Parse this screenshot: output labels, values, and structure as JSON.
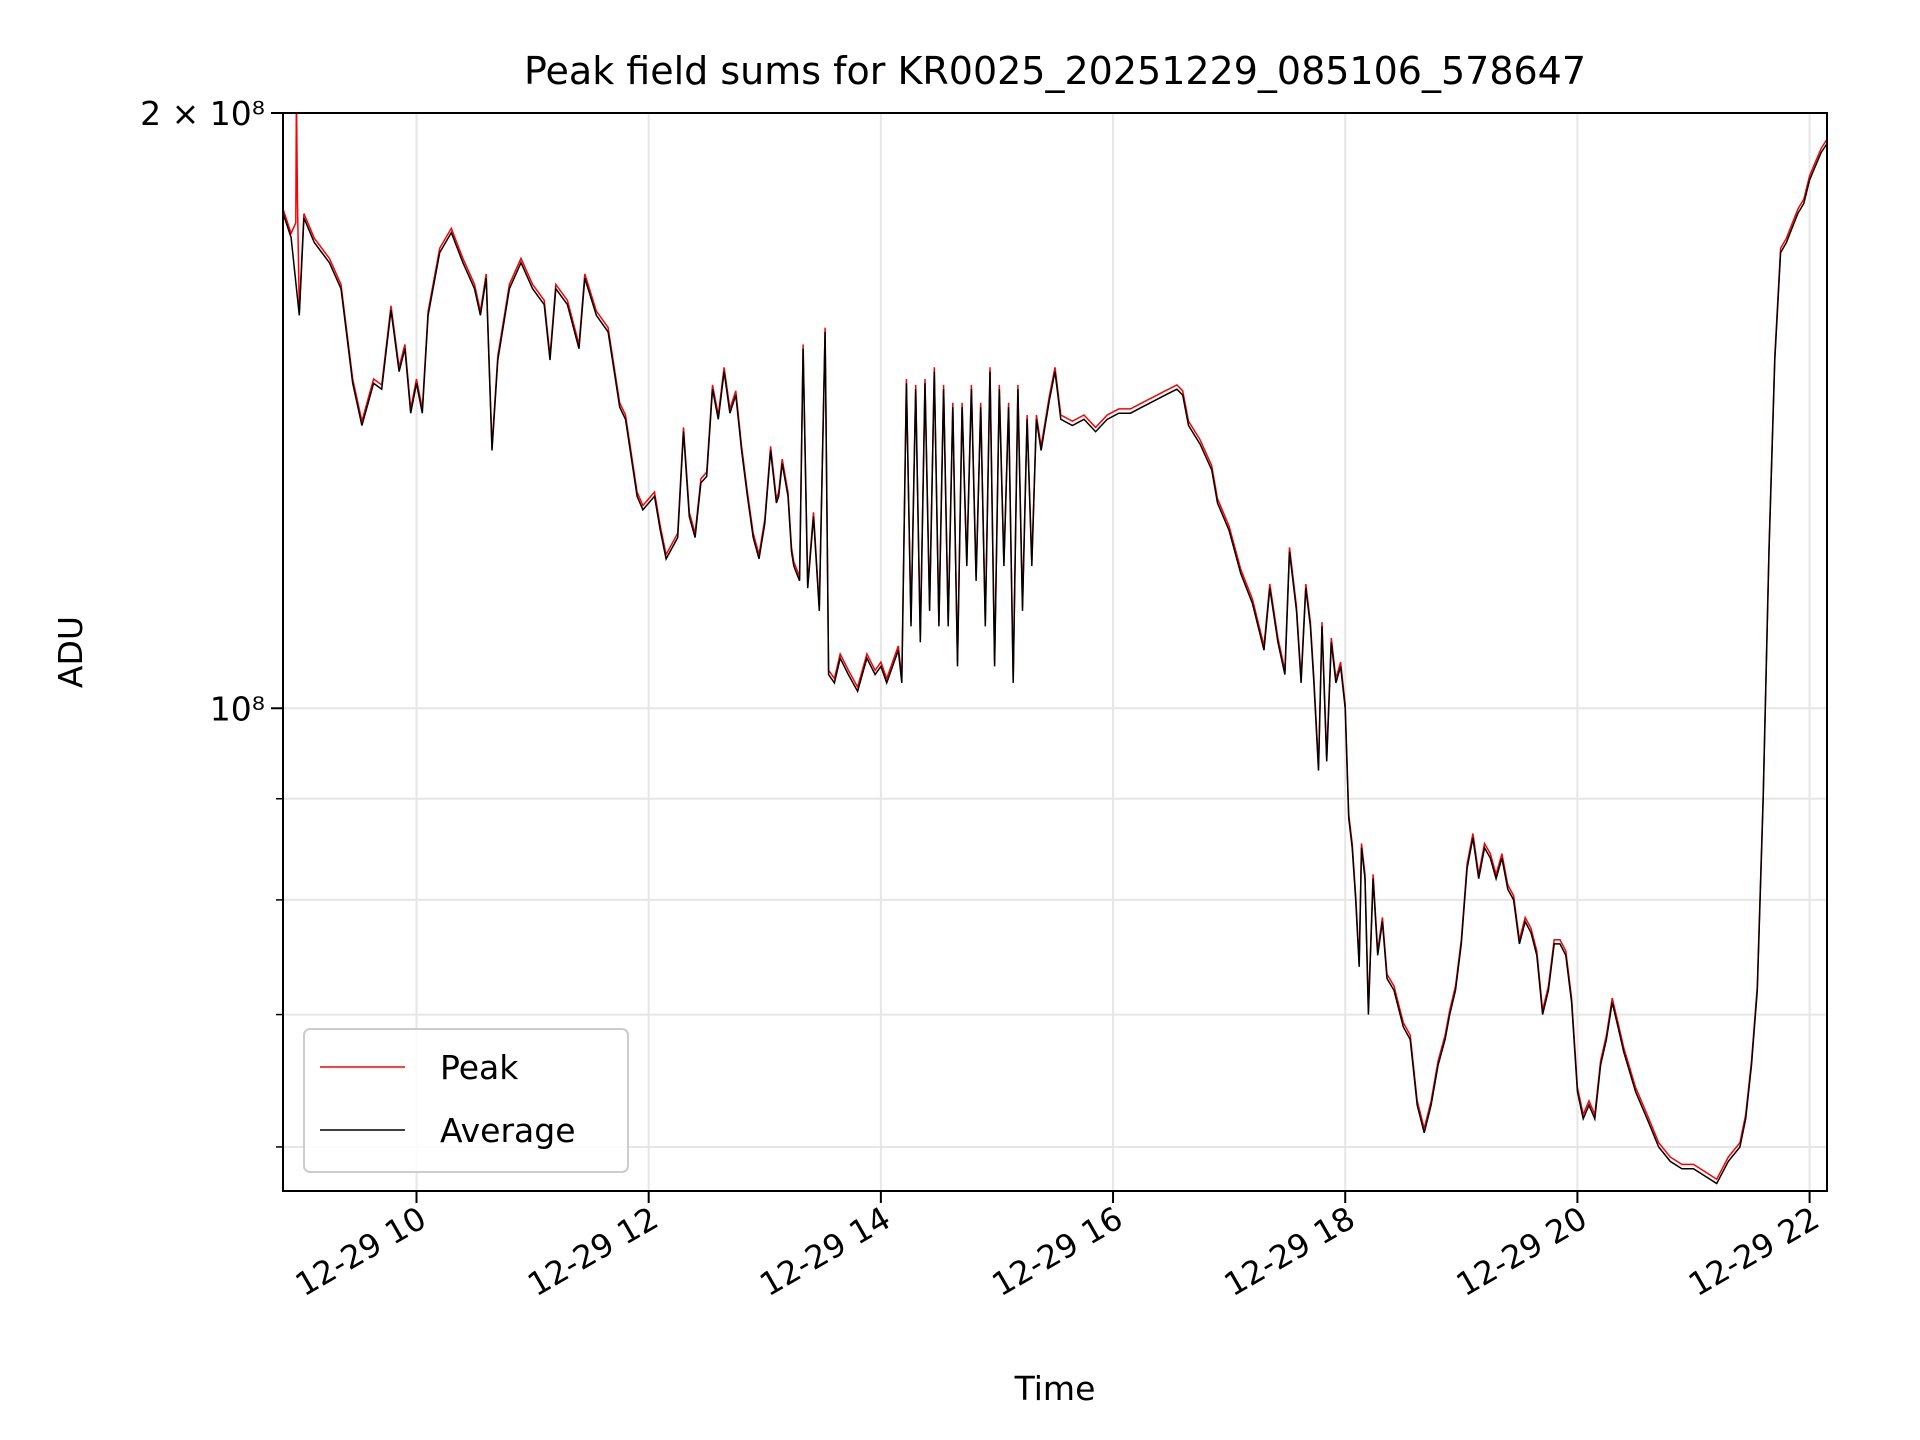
{
  "chart_data": {
    "type": "line",
    "title": "Peak field sums for KR0025_20251229_085106_578647",
    "xlabel": "Time",
    "ylabel": "ADU",
    "yscale": "log",
    "ylim": [
      57000000,
      200000000
    ],
    "xlim_hours": [
      8.85,
      22.15
    ],
    "grid": true,
    "legend_position": "lower-left",
    "x_ticks": [
      "12-29 10",
      "12-29 12",
      "12-29 14",
      "12-29 16",
      "12-29 18",
      "12-29 20",
      "12-29 22"
    ],
    "x_tick_hours": [
      10,
      12,
      14,
      16,
      18,
      20,
      22
    ],
    "y_major_ticks": [
      100000000,
      200000000
    ],
    "y_major_labels": [
      "10⁸",
      "2 × 10⁸"
    ],
    "y_minor_ticks": [
      60000000,
      70000000,
      80000000,
      90000000
    ],
    "x_unit_note": "hours of 12-29",
    "series": [
      {
        "name": "Average",
        "color": "#000000",
        "points": [
          [
            8.85,
            178000000
          ],
          [
            8.92,
            173000000
          ],
          [
            8.99,
            158000000
          ],
          [
            9.03,
            177000000
          ],
          [
            9.12,
            172000000
          ],
          [
            9.25,
            168000000
          ],
          [
            9.35,
            163000000
          ],
          [
            9.45,
            146000000
          ],
          [
            9.53,
            139000000
          ],
          [
            9.63,
            146000000
          ],
          [
            9.7,
            145000000
          ],
          [
            9.78,
            159000000
          ],
          [
            9.85,
            148000000
          ],
          [
            9.9,
            152000000
          ],
          [
            9.95,
            141000000
          ],
          [
            10.0,
            146000000
          ],
          [
            10.05,
            141000000
          ],
          [
            10.1,
            158000000
          ],
          [
            10.2,
            170000000
          ],
          [
            10.3,
            174000000
          ],
          [
            10.4,
            168000000
          ],
          [
            10.5,
            163000000
          ],
          [
            10.55,
            158000000
          ],
          [
            10.6,
            165000000
          ],
          [
            10.65,
            135000000
          ],
          [
            10.7,
            150000000
          ],
          [
            10.8,
            163000000
          ],
          [
            10.9,
            168000000
          ],
          [
            11.0,
            163000000
          ],
          [
            11.1,
            160000000
          ],
          [
            11.15,
            150000000
          ],
          [
            11.2,
            163000000
          ],
          [
            11.3,
            160000000
          ],
          [
            11.4,
            152000000
          ],
          [
            11.45,
            165000000
          ],
          [
            11.55,
            158000000
          ],
          [
            11.65,
            155000000
          ],
          [
            11.75,
            142000000
          ],
          [
            11.8,
            140000000
          ],
          [
            11.9,
            128000000
          ],
          [
            11.95,
            126000000
          ],
          [
            12.05,
            128000000
          ],
          [
            12.1,
            123000000
          ],
          [
            12.15,
            119000000
          ],
          [
            12.25,
            122000000
          ],
          [
            12.3,
            138000000
          ],
          [
            12.35,
            125000000
          ],
          [
            12.4,
            122000000
          ],
          [
            12.45,
            130000000
          ],
          [
            12.5,
            131000000
          ],
          [
            12.55,
            145000000
          ],
          [
            12.6,
            140000000
          ],
          [
            12.65,
            148000000
          ],
          [
            12.7,
            141000000
          ],
          [
            12.75,
            144000000
          ],
          [
            12.8,
            135000000
          ],
          [
            12.85,
            128000000
          ],
          [
            12.9,
            122000000
          ],
          [
            12.95,
            119000000
          ],
          [
            13.0,
            124000000
          ],
          [
            13.05,
            135000000
          ],
          [
            13.1,
            127000000
          ],
          [
            13.12,
            128000000
          ],
          [
            13.15,
            133000000
          ],
          [
            13.2,
            128000000
          ],
          [
            13.23,
            120000000
          ],
          [
            13.25,
            118000000
          ],
          [
            13.3,
            116000000
          ],
          [
            13.33,
            152000000
          ],
          [
            13.37,
            115000000
          ],
          [
            13.42,
            125000000
          ],
          [
            13.47,
            112000000
          ],
          [
            13.52,
            155000000
          ],
          [
            13.55,
            104000000
          ],
          [
            13.6,
            103000000
          ],
          [
            13.65,
            106000000
          ],
          [
            13.72,
            104000000
          ],
          [
            13.8,
            102000000
          ],
          [
            13.88,
            106000000
          ],
          [
            13.95,
            104000000
          ],
          [
            14.0,
            105000000
          ],
          [
            14.05,
            103000000
          ],
          [
            14.15,
            107000000
          ],
          [
            14.18,
            103000000
          ],
          [
            14.22,
            146000000
          ],
          [
            14.26,
            110000000
          ],
          [
            14.3,
            145000000
          ],
          [
            14.34,
            108000000
          ],
          [
            14.38,
            146000000
          ],
          [
            14.42,
            112000000
          ],
          [
            14.46,
            148000000
          ],
          [
            14.5,
            110000000
          ],
          [
            14.54,
            145000000
          ],
          [
            14.58,
            110000000
          ],
          [
            14.62,
            142000000
          ],
          [
            14.66,
            105000000
          ],
          [
            14.7,
            142000000
          ],
          [
            14.74,
            118000000
          ],
          [
            14.78,
            145000000
          ],
          [
            14.82,
            116000000
          ],
          [
            14.86,
            142000000
          ],
          [
            14.9,
            110000000
          ],
          [
            14.94,
            148000000
          ],
          [
            14.98,
            105000000
          ],
          [
            15.02,
            145000000
          ],
          [
            15.06,
            118000000
          ],
          [
            15.1,
            142000000
          ],
          [
            15.14,
            103000000
          ],
          [
            15.18,
            145000000
          ],
          [
            15.22,
            112000000
          ],
          [
            15.26,
            140000000
          ],
          [
            15.3,
            118000000
          ],
          [
            15.34,
            140000000
          ],
          [
            15.38,
            135000000
          ],
          [
            15.45,
            143000000
          ],
          [
            15.5,
            148000000
          ],
          [
            15.55,
            140000000
          ],
          [
            15.65,
            139000000
          ],
          [
            15.75,
            140000000
          ],
          [
            15.85,
            138000000
          ],
          [
            15.95,
            140000000
          ],
          [
            16.05,
            141000000
          ],
          [
            16.15,
            141000000
          ],
          [
            16.25,
            142000000
          ],
          [
            16.35,
            143000000
          ],
          [
            16.45,
            144000000
          ],
          [
            16.55,
            145000000
          ],
          [
            16.6,
            144000000
          ],
          [
            16.65,
            139000000
          ],
          [
            16.75,
            136000000
          ],
          [
            16.85,
            132000000
          ],
          [
            16.9,
            127000000
          ],
          [
            17.0,
            123000000
          ],
          [
            17.1,
            117000000
          ],
          [
            17.2,
            113000000
          ],
          [
            17.3,
            107000000
          ],
          [
            17.35,
            115000000
          ],
          [
            17.42,
            108000000
          ],
          [
            17.48,
            104000000
          ],
          [
            17.52,
            120000000
          ],
          [
            17.58,
            112000000
          ],
          [
            17.62,
            103000000
          ],
          [
            17.66,
            115000000
          ],
          [
            17.7,
            110000000
          ],
          [
            17.73,
            103000000
          ],
          [
            17.77,
            93000000
          ],
          [
            17.8,
            110000000
          ],
          [
            17.84,
            94000000
          ],
          [
            17.88,
            108000000
          ],
          [
            17.92,
            103000000
          ],
          [
            17.96,
            105000000
          ],
          [
            18.0,
            100000000
          ],
          [
            18.03,
            88000000
          ],
          [
            18.06,
            85000000
          ],
          [
            18.09,
            80000000
          ],
          [
            18.12,
            74000000
          ],
          [
            18.14,
            85000000
          ],
          [
            18.17,
            82000000
          ],
          [
            18.2,
            70000000
          ],
          [
            18.24,
            82000000
          ],
          [
            18.28,
            75000000
          ],
          [
            18.32,
            78000000
          ],
          [
            18.36,
            73000000
          ],
          [
            18.42,
            72000000
          ],
          [
            18.5,
            69000000
          ],
          [
            18.56,
            68000000
          ],
          [
            18.62,
            63000000
          ],
          [
            18.68,
            61000000
          ],
          [
            18.74,
            63000000
          ],
          [
            18.8,
            66000000
          ],
          [
            18.86,
            68000000
          ],
          [
            18.9,
            70000000
          ],
          [
            18.95,
            72000000
          ],
          [
            19.0,
            76000000
          ],
          [
            19.05,
            83000000
          ],
          [
            19.1,
            86000000
          ],
          [
            19.15,
            82000000
          ],
          [
            19.2,
            85000000
          ],
          [
            19.25,
            84000000
          ],
          [
            19.3,
            82000000
          ],
          [
            19.35,
            84000000
          ],
          [
            19.4,
            81000000
          ],
          [
            19.45,
            80000000
          ],
          [
            19.5,
            76000000
          ],
          [
            19.55,
            78000000
          ],
          [
            19.6,
            77000000
          ],
          [
            19.65,
            75000000
          ],
          [
            19.7,
            70000000
          ],
          [
            19.75,
            72000000
          ],
          [
            19.8,
            76000000
          ],
          [
            19.85,
            76000000
          ],
          [
            19.9,
            75000000
          ],
          [
            19.95,
            71000000
          ],
          [
            20.0,
            64000000
          ],
          [
            20.05,
            62000000
          ],
          [
            20.1,
            63000000
          ],
          [
            20.15,
            62000000
          ],
          [
            20.2,
            66000000
          ],
          [
            20.25,
            68000000
          ],
          [
            20.3,
            71000000
          ],
          [
            20.35,
            69000000
          ],
          [
            20.4,
            67000000
          ],
          [
            20.5,
            64000000
          ],
          [
            20.6,
            62000000
          ],
          [
            20.7,
            60000000
          ],
          [
            20.8,
            59000000
          ],
          [
            20.9,
            58500000
          ],
          [
            21.0,
            58500000
          ],
          [
            21.1,
            58000000
          ],
          [
            21.2,
            57500000
          ],
          [
            21.3,
            59000000
          ],
          [
            21.4,
            60000000
          ],
          [
            21.45,
            62000000
          ],
          [
            21.5,
            66000000
          ],
          [
            21.55,
            72000000
          ],
          [
            21.6,
            90000000
          ],
          [
            21.65,
            120000000
          ],
          [
            21.7,
            150000000
          ],
          [
            21.75,
            170000000
          ],
          [
            21.8,
            172000000
          ],
          [
            21.85,
            175000000
          ],
          [
            21.9,
            178000000
          ],
          [
            21.95,
            180000000
          ],
          [
            22.0,
            185000000
          ],
          [
            22.05,
            188000000
          ],
          [
            22.1,
            191000000
          ],
          [
            22.15,
            193000000
          ]
        ]
      }
    ],
    "peak_series": {
      "name": "Peak",
      "color": "#ff0000",
      "ratio": 1.005,
      "spike": [
        [
          8.96,
          176000000
        ],
        [
          8.965,
          205000000
        ],
        [
          8.975,
          180000000
        ]
      ]
    }
  }
}
